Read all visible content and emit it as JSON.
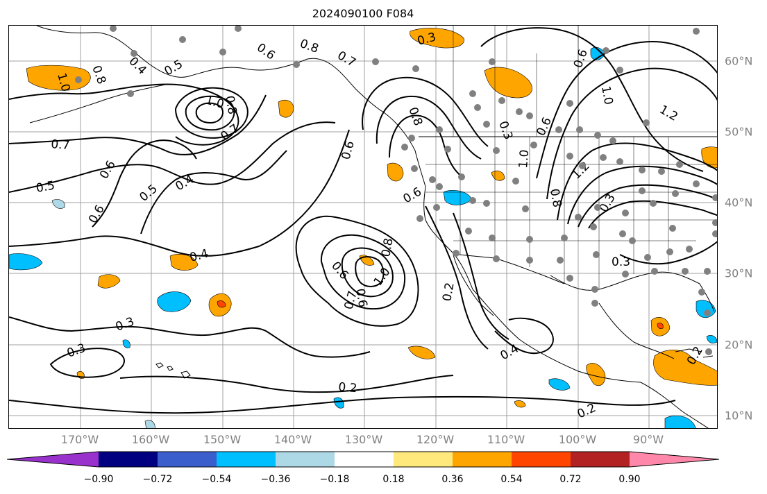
{
  "title": "2024090100 F084",
  "colors": {
    "grid": "#a0a0a0",
    "contour": "#000000",
    "coast": "#000000",
    "pos_036": "#ffa500",
    "pos_054": "#ff4500",
    "neg_036": "#00bfff",
    "neg_018": "#add8e6",
    "station": "#808080"
  },
  "axes": {
    "lon_labels": [
      "170°W",
      "160°W",
      "150°W",
      "140°W",
      "130°W",
      "120°W",
      "110°W",
      "100°W",
      "90°W"
    ],
    "lat_labels": [
      "60°N",
      "50°N",
      "40°N",
      "30°N",
      "20°N",
      "10°N"
    ]
  },
  "contour_labels": [
    "0.3",
    "0.8",
    "0.7",
    "0.6",
    "0.8",
    "1.0",
    "0.4",
    "0.5",
    "1.0",
    "0.8",
    "0.7",
    "0.6",
    "0.5",
    "0.4",
    "0.6",
    "0.7",
    "0.5",
    "0.6",
    "0.6",
    "0.8",
    "0.3",
    "0.6",
    "1.0",
    "1.2",
    "0.6",
    "0.4",
    "0.6",
    "1.0",
    "0.8",
    "0.6",
    "0.7",
    "0.2",
    "0.3",
    "0.3",
    "0.4",
    "0.2",
    "0.2",
    "0.3",
    "0.2",
    "1.0",
    "1.2",
    "0.3",
    "0.8"
  ],
  "colorbar": {
    "colors": [
      "#9932cc",
      "#000080",
      "#3a5fcd",
      "#00bfff",
      "#add8e6",
      "#ffffff",
      "#ffe87c",
      "#ffa500",
      "#ff4500",
      "#b22222",
      "#ff88aa"
    ],
    "ticks": [
      "−0.90",
      "−0.72",
      "−0.54",
      "−0.36",
      "−0.18",
      "0.18",
      "0.36",
      "0.54",
      "0.72",
      "0.90"
    ]
  }
}
